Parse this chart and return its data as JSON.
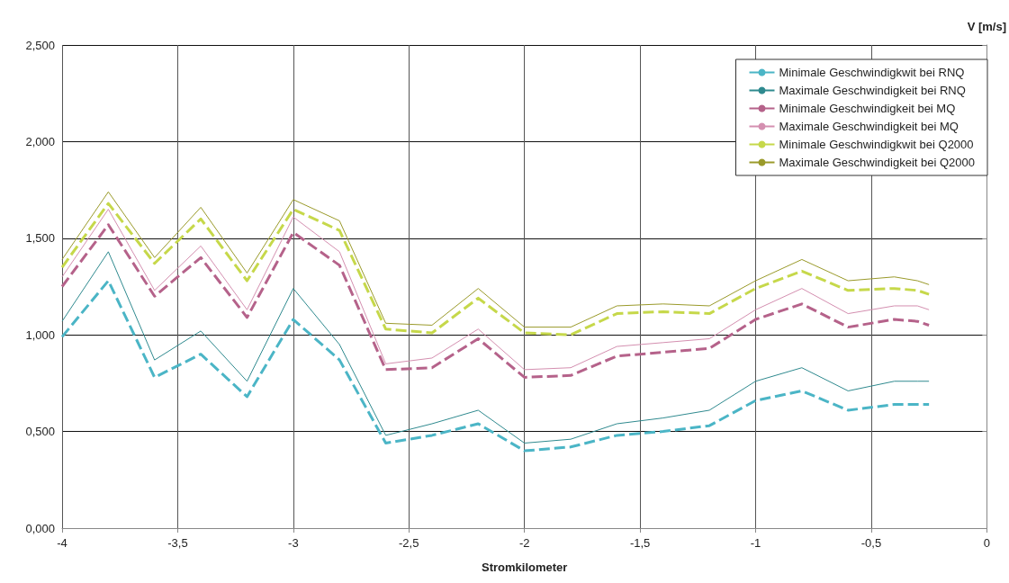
{
  "chart_data": {
    "type": "line",
    "xlabel": "Stromkilometer",
    "ylabel": "V [m/s]",
    "x": [
      -4,
      -3.8,
      -3.6,
      -3.4,
      -3.2,
      -3,
      -2.8,
      -2.6,
      -2.4,
      -2.2,
      -2,
      -1.8,
      -1.6,
      -1.4,
      -1.2,
      -1,
      -0.8,
      -0.6,
      -0.4,
      -0.3,
      -0.25
    ],
    "series": [
      {
        "name": "Minimale Geschwindigkwit bei RNQ",
        "color": "#4bb5c6",
        "line_style": "dashed",
        "values": [
          0.99,
          1.28,
          0.78,
          0.9,
          0.68,
          1.08,
          0.87,
          0.44,
          0.48,
          0.54,
          0.4,
          0.42,
          0.48,
          0.5,
          0.53,
          0.66,
          0.71,
          0.61,
          0.64,
          0.64,
          0.64
        ]
      },
      {
        "name": "Maximale Geschwindigkeit bei RNQ",
        "color": "#2f8a8f",
        "line_style": "solid",
        "values": [
          1.07,
          1.43,
          0.87,
          1.02,
          0.76,
          1.24,
          0.95,
          0.48,
          0.54,
          0.61,
          0.44,
          0.46,
          0.54,
          0.57,
          0.61,
          0.76,
          0.83,
          0.71,
          0.76,
          0.76,
          0.76
        ]
      },
      {
        "name": "Minimale Geschwindigkeit bei MQ",
        "color": "#b5628a",
        "line_style": "dashed",
        "values": [
          1.25,
          1.57,
          1.2,
          1.4,
          1.09,
          1.53,
          1.36,
          0.82,
          0.83,
          0.98,
          0.78,
          0.79,
          0.89,
          0.91,
          0.93,
          1.08,
          1.16,
          1.04,
          1.08,
          1.07,
          1.05
        ]
      },
      {
        "name": "Maximale Geschwindigkeit bei MQ",
        "color": "#d48fb0",
        "line_style": "solid",
        "values": [
          1.3,
          1.65,
          1.23,
          1.46,
          1.13,
          1.61,
          1.43,
          0.85,
          0.88,
          1.03,
          0.82,
          0.83,
          0.94,
          0.96,
          0.98,
          1.13,
          1.24,
          1.11,
          1.15,
          1.15,
          1.13
        ]
      },
      {
        "name": "Minimale Geschwindigkwit bei Q2000",
        "color": "#c6d84a",
        "line_style": "dashed",
        "values": [
          1.35,
          1.68,
          1.37,
          1.6,
          1.28,
          1.65,
          1.54,
          1.03,
          1.01,
          1.19,
          1.01,
          1.0,
          1.11,
          1.12,
          1.11,
          1.24,
          1.33,
          1.23,
          1.24,
          1.23,
          1.21
        ]
      },
      {
        "name": "Maximale Geschwindigkeit bei Q2000",
        "color": "#9a9a2a",
        "line_style": "solid",
        "values": [
          1.39,
          1.74,
          1.4,
          1.66,
          1.32,
          1.7,
          1.59,
          1.06,
          1.05,
          1.24,
          1.04,
          1.04,
          1.15,
          1.16,
          1.15,
          1.28,
          1.39,
          1.28,
          1.3,
          1.28,
          1.26
        ]
      }
    ],
    "xlim": [
      -4,
      0
    ],
    "xticks": [
      -4,
      {
        "value": -3.5,
        "label": "-3,5"
      },
      -3,
      {
        "value": -2.5,
        "label": "-2,5"
      },
      -2,
      {
        "value": -1.5,
        "label": "-1,5"
      },
      -1,
      {
        "value": -0.5,
        "label": "-0,5"
      },
      0
    ],
    "ylim": [
      0,
      2.5
    ],
    "yticks": [
      {
        "value": 0,
        "label": "0,000"
      },
      {
        "value": 0.5,
        "label": "0,500"
      },
      {
        "value": 1,
        "label": "1,000"
      },
      {
        "value": 1.5,
        "label": "1,500"
      },
      {
        "value": 2,
        "label": "2,000"
      },
      {
        "value": 2.5,
        "label": "2,500"
      }
    ],
    "grid": true,
    "legend": "top right",
    "marker": "none"
  }
}
